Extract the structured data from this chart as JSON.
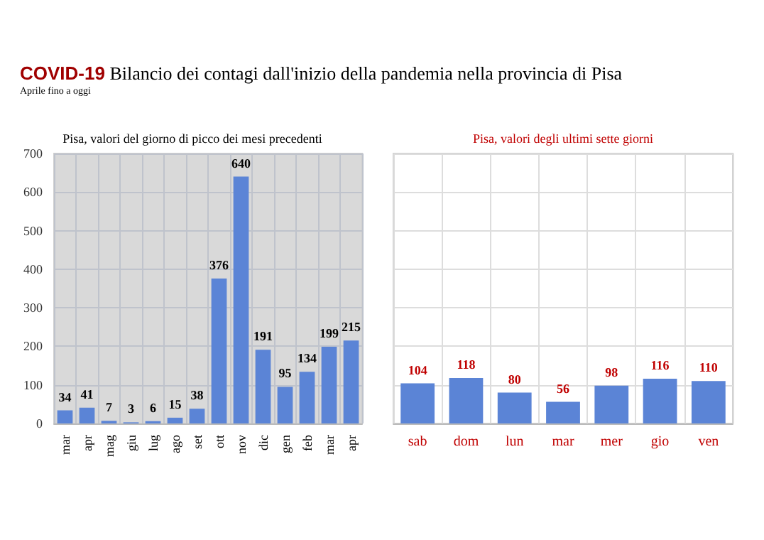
{
  "chart_data": [
    {
      "type": "bar",
      "title": "COVID-19 Bilancio dei contagi dall'inizio della pandemia nella provincia di Pisa",
      "subtitle": "Aprile fino a oggi",
      "annotations": [
        "Pisa, valori del giorno di picco dei mesi precedenti"
      ],
      "categories": [
        "mar",
        "apr",
        "mag",
        "giu",
        "lug",
        "ago",
        "set",
        "ott",
        "nov",
        "dic",
        "gen",
        "feb",
        "mar",
        "apr"
      ],
      "values": [
        34,
        41,
        7,
        3,
        6,
        15,
        38,
        376,
        640,
        191,
        95,
        134,
        199,
        215
      ],
      "color": "#5b84d6",
      "ylim": [
        0,
        700
      ],
      "yticks": [
        0,
        100,
        200,
        300,
        400,
        500,
        600,
        700
      ],
      "grid": true,
      "data_labels": true
    },
    {
      "type": "bar",
      "title": "Pisa, valori degli ultimi sette giorni",
      "categories": [
        "sab",
        "dom",
        "lun",
        "mar",
        "mer",
        "gio",
        "ven"
      ],
      "values": [
        104,
        118,
        80,
        56,
        98,
        116,
        110
      ],
      "color": "#5b84d6",
      "ylim": [
        0,
        700
      ],
      "yticks": [
        0,
        100,
        200,
        300,
        400,
        500,
        600,
        700
      ],
      "grid": true,
      "data_labels": true,
      "tick_labels": "x"
    }
  ]
}
